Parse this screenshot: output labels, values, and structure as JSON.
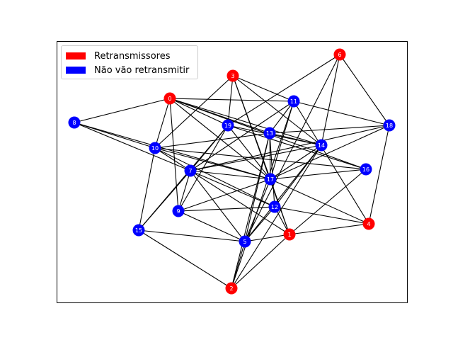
{
  "legend": {
    "retransmitters_label": "Retransmissores",
    "non_retransmitters_label": "Não vão retransmitir"
  },
  "colors": {
    "retransmitter": "#ff0000",
    "non_retransmitter": "#0000ff",
    "edge": "#000000",
    "label_text": "#ffffff"
  },
  "nodes": [
    {
      "id": "0",
      "group": "retransmitter"
    },
    {
      "id": "1",
      "group": "retransmitter"
    },
    {
      "id": "2",
      "group": "retransmitter"
    },
    {
      "id": "3",
      "group": "retransmitter"
    },
    {
      "id": "4",
      "group": "retransmitter"
    },
    {
      "id": "5",
      "group": "non_retransmitter"
    },
    {
      "id": "6",
      "group": "retransmitter"
    },
    {
      "id": "7",
      "group": "non_retransmitter"
    },
    {
      "id": "8",
      "group": "non_retransmitter"
    },
    {
      "id": "9",
      "group": "non_retransmitter"
    },
    {
      "id": "10",
      "group": "non_retransmitter"
    },
    {
      "id": "11",
      "group": "non_retransmitter"
    },
    {
      "id": "12",
      "group": "non_retransmitter"
    },
    {
      "id": "13",
      "group": "non_retransmitter"
    },
    {
      "id": "14",
      "group": "non_retransmitter"
    },
    {
      "id": "15",
      "group": "non_retransmitter"
    },
    {
      "id": "16",
      "group": "non_retransmitter"
    },
    {
      "id": "17",
      "group": "non_retransmitter"
    },
    {
      "id": "18",
      "group": "non_retransmitter"
    },
    {
      "id": "19",
      "group": "non_retransmitter"
    }
  ],
  "edges": [
    [
      "0",
      "11"
    ],
    [
      "0",
      "10"
    ],
    [
      "0",
      "8"
    ],
    [
      "0",
      "9"
    ],
    [
      "0",
      "19"
    ],
    [
      "0",
      "13"
    ],
    [
      "0",
      "14"
    ],
    [
      "0",
      "16"
    ],
    [
      "0",
      "17"
    ],
    [
      "3",
      "11"
    ],
    [
      "3",
      "19"
    ],
    [
      "3",
      "10"
    ],
    [
      "3",
      "17"
    ],
    [
      "3",
      "14"
    ],
    [
      "3",
      "1"
    ],
    [
      "6",
      "19"
    ],
    [
      "6",
      "18"
    ],
    [
      "6",
      "14"
    ],
    [
      "6",
      "5"
    ],
    [
      "8",
      "10"
    ],
    [
      "8",
      "7"
    ],
    [
      "8",
      "17"
    ],
    [
      "10",
      "15"
    ],
    [
      "10",
      "7"
    ],
    [
      "10",
      "17"
    ],
    [
      "10",
      "16"
    ],
    [
      "10",
      "13"
    ],
    [
      "10",
      "12"
    ],
    [
      "11",
      "7"
    ],
    [
      "11",
      "17"
    ],
    [
      "11",
      "2"
    ],
    [
      "11",
      "18"
    ],
    [
      "11",
      "4"
    ],
    [
      "11",
      "13"
    ],
    [
      "19",
      "9"
    ],
    [
      "19",
      "15"
    ],
    [
      "19",
      "14"
    ],
    [
      "19",
      "16"
    ],
    [
      "19",
      "17"
    ],
    [
      "19",
      "7"
    ],
    [
      "13",
      "18"
    ],
    [
      "13",
      "14"
    ],
    [
      "13",
      "17"
    ],
    [
      "13",
      "12"
    ],
    [
      "13",
      "5"
    ],
    [
      "13",
      "2"
    ],
    [
      "14",
      "7"
    ],
    [
      "14",
      "5"
    ],
    [
      "14",
      "12"
    ],
    [
      "14",
      "17"
    ],
    [
      "14",
      "2"
    ],
    [
      "18",
      "7"
    ],
    [
      "18",
      "17"
    ],
    [
      "18",
      "4"
    ],
    [
      "16",
      "17"
    ],
    [
      "16",
      "1"
    ],
    [
      "7",
      "17"
    ],
    [
      "7",
      "9"
    ],
    [
      "7",
      "5"
    ],
    [
      "7",
      "12"
    ],
    [
      "7",
      "1"
    ],
    [
      "7",
      "15"
    ],
    [
      "17",
      "9"
    ],
    [
      "17",
      "5"
    ],
    [
      "17",
      "1"
    ],
    [
      "17",
      "4"
    ],
    [
      "9",
      "12"
    ],
    [
      "9",
      "5"
    ],
    [
      "12",
      "4"
    ],
    [
      "12",
      "5"
    ],
    [
      "15",
      "5"
    ],
    [
      "15",
      "2"
    ],
    [
      "5",
      "1"
    ],
    [
      "5",
      "2"
    ],
    [
      "1",
      "4"
    ],
    [
      "1",
      "2"
    ],
    [
      "1",
      "12"
    ]
  ]
}
